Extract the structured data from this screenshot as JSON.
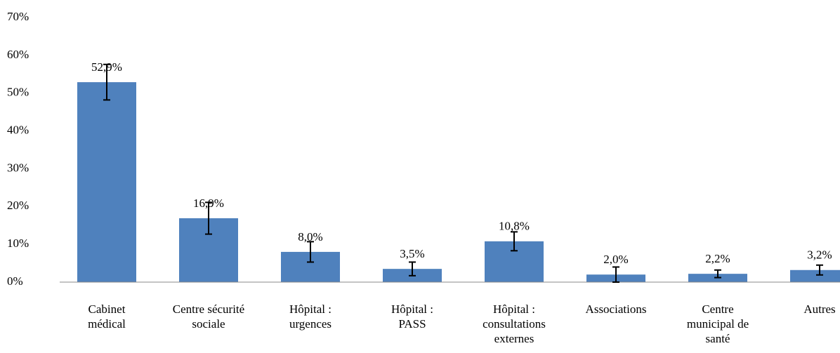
{
  "chart_data": {
    "type": "bar",
    "categories": [
      "Cabinet\nmédical",
      "Centre sécurité\nsociale",
      "Hôpital :\nurgences",
      "Hôpital :\nPASS",
      "Hôpital :\nconsultations\nexternes",
      "Associations",
      "Centre\nmunicipal de\nsanté",
      "Autres"
    ],
    "values": [
      52.9,
      16.9,
      8.0,
      3.5,
      10.8,
      2.0,
      2.2,
      3.2
    ],
    "value_labels": [
      "52,9%",
      "16,9%",
      "8,0%",
      "3,5%",
      "10,8%",
      "2,0%",
      "2,2%",
      "3,2%"
    ],
    "errors": [
      4.7,
      4.2,
      2.7,
      1.8,
      2.5,
      2.0,
      1.0,
      1.3
    ],
    "color": "#4f81bd",
    "ylim": [
      0,
      70
    ],
    "yticks": [
      {
        "value": 0,
        "label": "0%"
      },
      {
        "value": 10,
        "label": "10%"
      },
      {
        "value": 20,
        "label": "20%"
      },
      {
        "value": 30,
        "label": "30%"
      },
      {
        "value": 40,
        "label": "40%"
      },
      {
        "value": 50,
        "label": "50%"
      },
      {
        "value": 60,
        "label": "60%"
      },
      {
        "value": 70,
        "label": "70%"
      }
    ],
    "grid": false
  }
}
